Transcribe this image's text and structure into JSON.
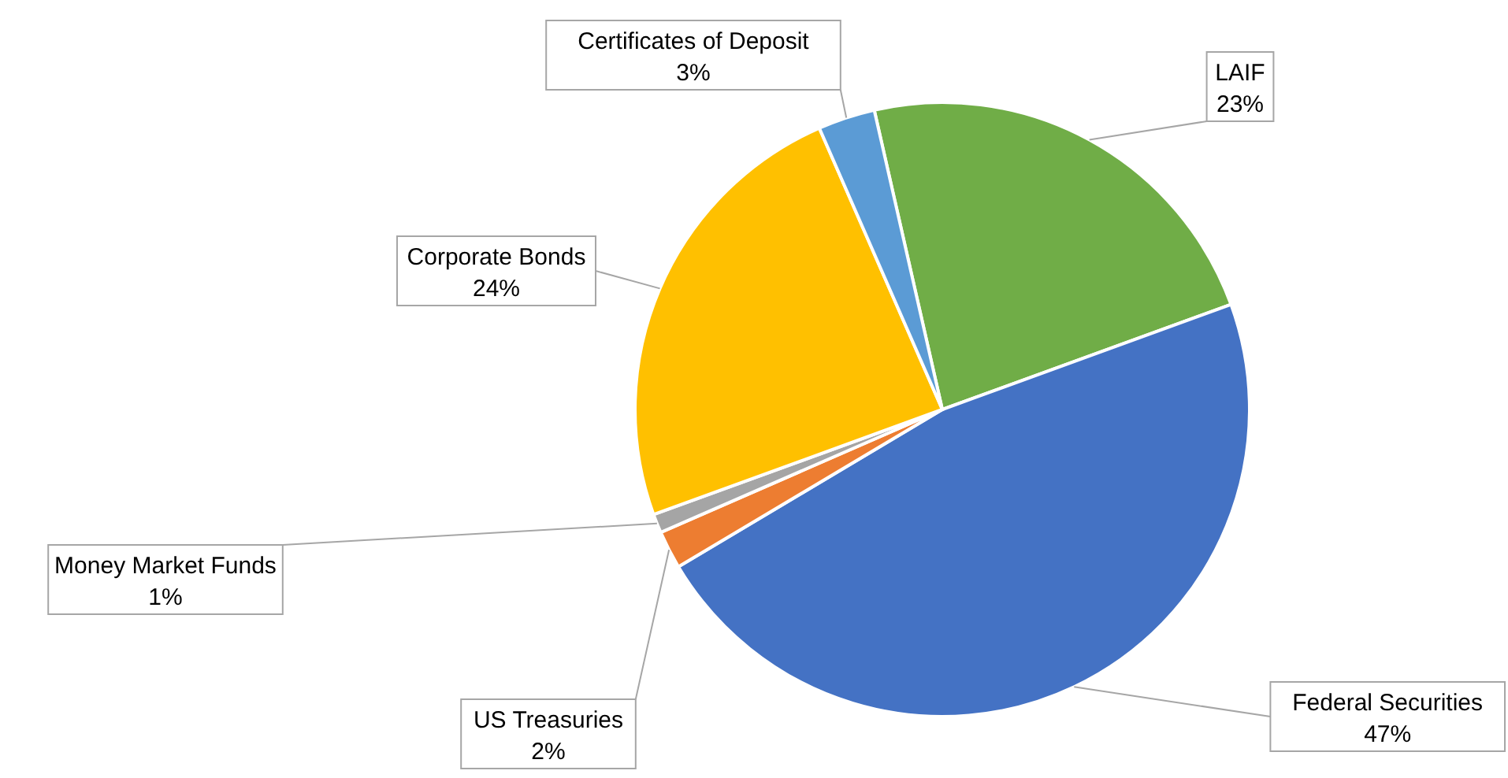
{
  "chart_data": {
    "type": "pie",
    "categories": [
      "LAIF",
      "Federal Securities",
      "US Treasuries",
      "Money Market Funds",
      "Corporate Bonds",
      "Certificates of Deposit"
    ],
    "values": [
      23,
      47,
      2,
      1,
      24,
      3
    ],
    "value_labels": [
      "23%",
      "47%",
      "2%",
      "1%",
      "24%",
      "3%"
    ],
    "colors": [
      "#70ad47",
      "#4472c4",
      "#ed7d31",
      "#a5a5a5",
      "#ffc000",
      "#5b9bd5"
    ]
  }
}
